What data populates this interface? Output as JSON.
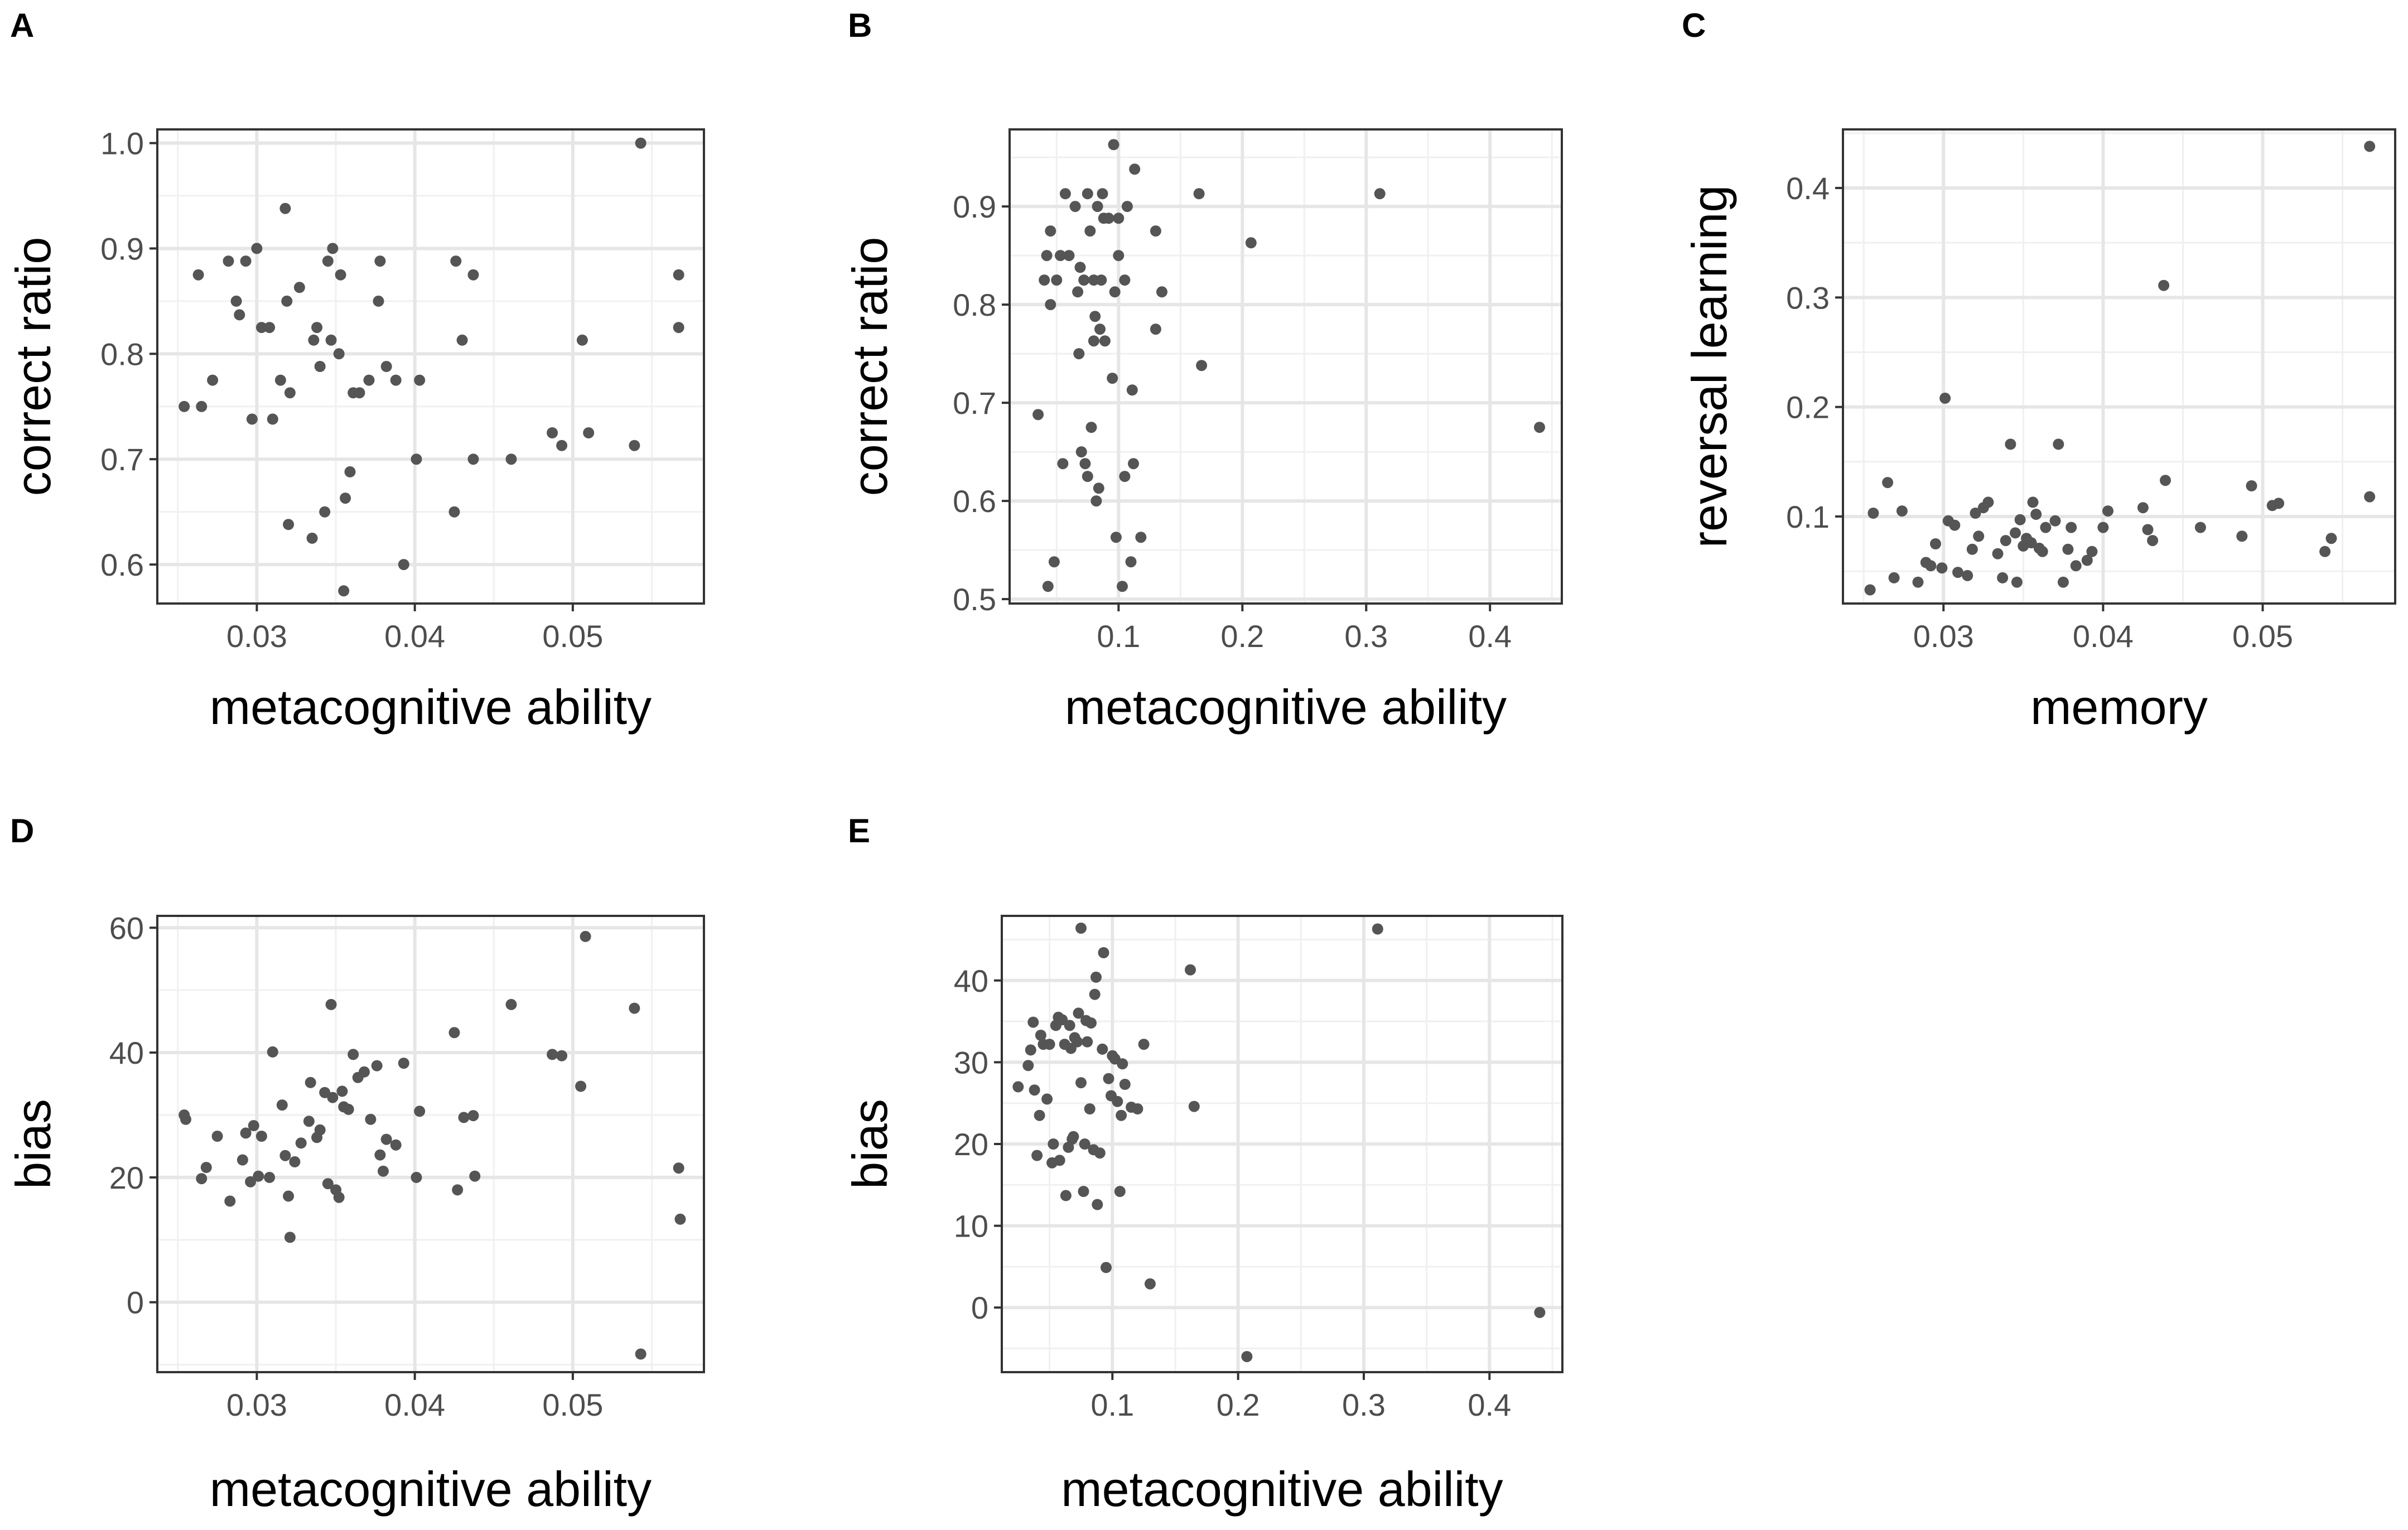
{
  "chart_data": [
    {
      "panel": "A",
      "type": "scatter",
      "xlabel": "metacognitive ability",
      "ylabel": "correct ratio",
      "xlim": [
        0.0237,
        0.0583
      ],
      "ylim": [
        0.563,
        1.013
      ],
      "xticks": [
        0.03,
        0.04,
        0.05
      ],
      "xtick_labels": [
        "0.03",
        "0.04",
        "0.05"
      ],
      "yticks": [
        0.6,
        0.7,
        0.8,
        0.9,
        1.0
      ],
      "ytick_labels": [
        "0.6",
        "0.7",
        "0.8",
        "0.9",
        "1.0"
      ],
      "points": [
        [
          0.0254,
          0.75
        ],
        [
          0.0263,
          0.875
        ],
        [
          0.0265,
          0.75
        ],
        [
          0.0272,
          0.775
        ],
        [
          0.0282,
          0.888
        ],
        [
          0.0287,
          0.85
        ],
        [
          0.0289,
          0.837
        ],
        [
          0.0293,
          0.888
        ],
        [
          0.0297,
          0.738
        ],
        [
          0.03,
          0.9
        ],
        [
          0.0303,
          0.825
        ],
        [
          0.0308,
          0.825
        ],
        [
          0.031,
          0.738
        ],
        [
          0.0315,
          0.775
        ],
        [
          0.0318,
          0.938
        ],
        [
          0.0319,
          0.85
        ],
        [
          0.032,
          0.638
        ],
        [
          0.0321,
          0.763
        ],
        [
          0.0327,
          0.863
        ],
        [
          0.0335,
          0.625
        ],
        [
          0.0336,
          0.813
        ],
        [
          0.0338,
          0.825
        ],
        [
          0.034,
          0.788
        ],
        [
          0.0343,
          0.65
        ],
        [
          0.0345,
          0.888
        ],
        [
          0.0347,
          0.813
        ],
        [
          0.0348,
          0.9
        ],
        [
          0.0352,
          0.8
        ],
        [
          0.0353,
          0.875
        ],
        [
          0.0355,
          0.575
        ],
        [
          0.0356,
          0.663
        ],
        [
          0.0359,
          0.688
        ],
        [
          0.0361,
          0.763
        ],
        [
          0.0365,
          0.763
        ],
        [
          0.0371,
          0.775
        ],
        [
          0.0377,
          0.85
        ],
        [
          0.0378,
          0.888
        ],
        [
          0.0382,
          0.788
        ],
        [
          0.0388,
          0.775
        ],
        [
          0.0393,
          0.6
        ],
        [
          0.0401,
          0.7
        ],
        [
          0.0403,
          0.775
        ],
        [
          0.0425,
          0.65
        ],
        [
          0.0426,
          0.888
        ],
        [
          0.043,
          0.813
        ],
        [
          0.0437,
          0.875
        ],
        [
          0.0437,
          0.7
        ],
        [
          0.0461,
          0.7
        ],
        [
          0.0487,
          0.725
        ],
        [
          0.0493,
          0.713
        ],
        [
          0.0506,
          0.813
        ],
        [
          0.051,
          0.725
        ],
        [
          0.0539,
          0.713
        ],
        [
          0.0543,
          1.0
        ],
        [
          0.0567,
          0.875
        ],
        [
          0.0567,
          0.825
        ]
      ]
    },
    {
      "panel": "B",
      "type": "scatter",
      "xlabel": "metacognitive ability",
      "ylabel": "correct ratio",
      "xlim": [
        0.012,
        0.458
      ],
      "ylim": [
        0.4955,
        0.9785
      ],
      "xticks": [
        0.1,
        0.2,
        0.3,
        0.4
      ],
      "xtick_labels": [
        "0.1",
        "0.2",
        "0.3",
        "0.4"
      ],
      "yticks": [
        0.5,
        0.6,
        0.7,
        0.8,
        0.9
      ],
      "ytick_labels": [
        "0.5",
        "0.6",
        "0.7",
        "0.8",
        "0.9"
      ],
      "points": [
        [
          0.035,
          0.688
        ],
        [
          0.04,
          0.825
        ],
        [
          0.042,
          0.85
        ],
        [
          0.043,
          0.513
        ],
        [
          0.045,
          0.8
        ],
        [
          0.045,
          0.875
        ],
        [
          0.048,
          0.538
        ],
        [
          0.05,
          0.825
        ],
        [
          0.053,
          0.85
        ],
        [
          0.055,
          0.638
        ],
        [
          0.057,
          0.913
        ],
        [
          0.06,
          0.85
        ],
        [
          0.065,
          0.9
        ],
        [
          0.067,
          0.813
        ],
        [
          0.068,
          0.75
        ],
        [
          0.069,
          0.838
        ],
        [
          0.07,
          0.65
        ],
        [
          0.072,
          0.825
        ],
        [
          0.073,
          0.638
        ],
        [
          0.075,
          0.913
        ],
        [
          0.075,
          0.625
        ],
        [
          0.077,
          0.875
        ],
        [
          0.078,
          0.675
        ],
        [
          0.08,
          0.825
        ],
        [
          0.08,
          0.763
        ],
        [
          0.081,
          0.788
        ],
        [
          0.082,
          0.6
        ],
        [
          0.083,
          0.9
        ],
        [
          0.084,
          0.613
        ],
        [
          0.085,
          0.775
        ],
        [
          0.086,
          0.825
        ],
        [
          0.087,
          0.913
        ],
        [
          0.088,
          0.888
        ],
        [
          0.089,
          0.763
        ],
        [
          0.092,
          0.888
        ],
        [
          0.095,
          0.725
        ],
        [
          0.096,
          0.963
        ],
        [
          0.097,
          0.813
        ],
        [
          0.098,
          0.563
        ],
        [
          0.1,
          0.85
        ],
        [
          0.1,
          0.888
        ],
        [
          0.103,
          0.513
        ],
        [
          0.105,
          0.625
        ],
        [
          0.105,
          0.825
        ],
        [
          0.107,
          0.9
        ],
        [
          0.11,
          0.538
        ],
        [
          0.111,
          0.713
        ],
        [
          0.112,
          0.638
        ],
        [
          0.113,
          0.938
        ],
        [
          0.118,
          0.563
        ],
        [
          0.13,
          0.875
        ],
        [
          0.13,
          0.775
        ],
        [
          0.135,
          0.813
        ],
        [
          0.165,
          0.913
        ],
        [
          0.167,
          0.738
        ],
        [
          0.207,
          0.863
        ],
        [
          0.311,
          0.913
        ],
        [
          0.44,
          0.675
        ]
      ]
    },
    {
      "panel": "C",
      "type": "scatter",
      "xlabel": "memory",
      "ylabel": "reversal learning",
      "xlim": [
        0.0237,
        0.0583
      ],
      "ylim": [
        0.0205,
        0.4535
      ],
      "xticks": [
        0.03,
        0.04,
        0.05
      ],
      "xtick_labels": [
        "0.03",
        "0.04",
        "0.05"
      ],
      "yticks": [
        0.1,
        0.2,
        0.3,
        0.4
      ],
      "ytick_labels": [
        "0.1",
        "0.2",
        "0.3",
        "0.4"
      ],
      "points": [
        [
          0.0254,
          0.033
        ],
        [
          0.0256,
          0.103
        ],
        [
          0.0265,
          0.131
        ],
        [
          0.0269,
          0.044
        ],
        [
          0.0274,
          0.105
        ],
        [
          0.0284,
          0.04
        ],
        [
          0.0289,
          0.058
        ],
        [
          0.0292,
          0.055
        ],
        [
          0.0295,
          0.075
        ],
        [
          0.0299,
          0.053
        ],
        [
          0.0301,
          0.208
        ],
        [
          0.0303,
          0.096
        ],
        [
          0.0307,
          0.092
        ],
        [
          0.0309,
          0.049
        ],
        [
          0.0315,
          0.046
        ],
        [
          0.0318,
          0.07
        ],
        [
          0.032,
          0.103
        ],
        [
          0.0322,
          0.082
        ],
        [
          0.0325,
          0.108
        ],
        [
          0.0328,
          0.113
        ],
        [
          0.0334,
          0.066
        ],
        [
          0.0337,
          0.044
        ],
        [
          0.0339,
          0.078
        ],
        [
          0.0342,
          0.166
        ],
        [
          0.0345,
          0.085
        ],
        [
          0.0346,
          0.04
        ],
        [
          0.0348,
          0.097
        ],
        [
          0.035,
          0.073
        ],
        [
          0.0352,
          0.08
        ],
        [
          0.0355,
          0.076
        ],
        [
          0.0356,
          0.113
        ],
        [
          0.0358,
          0.102
        ],
        [
          0.036,
          0.071
        ],
        [
          0.0362,
          0.068
        ],
        [
          0.0364,
          0.09
        ],
        [
          0.037,
          0.096
        ],
        [
          0.0372,
          0.166
        ],
        [
          0.0375,
          0.04
        ],
        [
          0.0378,
          0.07
        ],
        [
          0.038,
          0.09
        ],
        [
          0.0383,
          0.055
        ],
        [
          0.039,
          0.06
        ],
        [
          0.0393,
          0.068
        ],
        [
          0.04,
          0.09
        ],
        [
          0.0403,
          0.105
        ],
        [
          0.0425,
          0.108
        ],
        [
          0.0428,
          0.088
        ],
        [
          0.0431,
          0.078
        ],
        [
          0.0438,
          0.311
        ],
        [
          0.0439,
          0.133
        ],
        [
          0.0461,
          0.09
        ],
        [
          0.0487,
          0.082
        ],
        [
          0.0493,
          0.128
        ],
        [
          0.0506,
          0.11
        ],
        [
          0.051,
          0.112
        ],
        [
          0.0539,
          0.068
        ],
        [
          0.0543,
          0.08
        ],
        [
          0.0567,
          0.438
        ],
        [
          0.0567,
          0.118
        ]
      ]
    },
    {
      "panel": "D",
      "type": "scatter",
      "xlabel": "metacognitive ability",
      "ylabel": "bias",
      "xlim": [
        0.0237,
        0.0583
      ],
      "ylim": [
        -11.2,
        61.9
      ],
      "xticks": [
        0.03,
        0.04,
        0.05
      ],
      "xtick_labels": [
        "0.03",
        "0.04",
        "0.05"
      ],
      "yticks": [
        0,
        20,
        40,
        60
      ],
      "ytick_labels": [
        "0",
        "20",
        "40",
        "60"
      ],
      "points": [
        [
          0.0254,
          30.0
        ],
        [
          0.0255,
          29.3
        ],
        [
          0.0265,
          19.8
        ],
        [
          0.0268,
          21.6
        ],
        [
          0.0275,
          26.6
        ],
        [
          0.0283,
          16.2
        ],
        [
          0.0291,
          22.8
        ],
        [
          0.0293,
          27.1
        ],
        [
          0.0296,
          19.3
        ],
        [
          0.0298,
          28.3
        ],
        [
          0.0301,
          20.2
        ],
        [
          0.0303,
          26.6
        ],
        [
          0.0308,
          20.0
        ],
        [
          0.031,
          40.1
        ],
        [
          0.0316,
          31.6
        ],
        [
          0.0318,
          23.5
        ],
        [
          0.032,
          17.0
        ],
        [
          0.0321,
          10.4
        ],
        [
          0.0324,
          22.5
        ],
        [
          0.0328,
          25.5
        ],
        [
          0.0333,
          29.0
        ],
        [
          0.0334,
          35.2
        ],
        [
          0.0338,
          26.4
        ],
        [
          0.034,
          27.6
        ],
        [
          0.0343,
          33.6
        ],
        [
          0.0345,
          19.0
        ],
        [
          0.0347,
          47.7
        ],
        [
          0.0348,
          32.8
        ],
        [
          0.035,
          18.0
        ],
        [
          0.0352,
          16.8
        ],
        [
          0.0354,
          33.8
        ],
        [
          0.0355,
          31.3
        ],
        [
          0.0358,
          30.9
        ],
        [
          0.0361,
          39.7
        ],
        [
          0.0364,
          36.0
        ],
        [
          0.0368,
          36.9
        ],
        [
          0.0372,
          29.3
        ],
        [
          0.0376,
          37.9
        ],
        [
          0.0378,
          23.6
        ],
        [
          0.038,
          21.0
        ],
        [
          0.0382,
          26.1
        ],
        [
          0.0388,
          25.2
        ],
        [
          0.0393,
          38.3
        ],
        [
          0.0401,
          20.0
        ],
        [
          0.0403,
          30.6
        ],
        [
          0.0425,
          43.2
        ],
        [
          0.0427,
          18.0
        ],
        [
          0.0431,
          29.6
        ],
        [
          0.0437,
          29.9
        ],
        [
          0.0438,
          20.2
        ],
        [
          0.0461,
          47.7
        ],
        [
          0.0487,
          39.7
        ],
        [
          0.0493,
          39.5
        ],
        [
          0.0505,
          34.6
        ],
        [
          0.0508,
          58.6
        ],
        [
          0.0539,
          47.1
        ],
        [
          0.0543,
          -8.3
        ],
        [
          0.0567,
          21.5
        ],
        [
          0.0568,
          13.3
        ]
      ]
    },
    {
      "panel": "E",
      "type": "scatter",
      "xlabel": "metacognitive ability",
      "ylabel": "bias",
      "xlim": [
        0.012,
        0.458
      ],
      "ylim": [
        -7.9,
        47.9
      ],
      "xticks": [
        0.1,
        0.2,
        0.3,
        0.4
      ],
      "xtick_labels": [
        "0.1",
        "0.2",
        "0.3",
        "0.4"
      ],
      "yticks": [
        0,
        10,
        20,
        30,
        40
      ],
      "ytick_labels": [
        "0",
        "10",
        "20",
        "30",
        "40"
      ],
      "points": [
        [
          0.025,
          27.0
        ],
        [
          0.033,
          29.6
        ],
        [
          0.035,
          31.5
        ],
        [
          0.037,
          34.9
        ],
        [
          0.038,
          26.6
        ],
        [
          0.04,
          18.6
        ],
        [
          0.042,
          23.5
        ],
        [
          0.043,
          33.3
        ],
        [
          0.045,
          32.2
        ],
        [
          0.048,
          25.5
        ],
        [
          0.05,
          32.2
        ],
        [
          0.052,
          17.7
        ],
        [
          0.053,
          20.0
        ],
        [
          0.055,
          34.5
        ],
        [
          0.057,
          35.5
        ],
        [
          0.058,
          18.0
        ],
        [
          0.06,
          35.2
        ],
        [
          0.062,
          32.2
        ],
        [
          0.063,
          13.7
        ],
        [
          0.065,
          19.6
        ],
        [
          0.066,
          34.5
        ],
        [
          0.067,
          31.7
        ],
        [
          0.068,
          20.6
        ],
        [
          0.069,
          20.9
        ],
        [
          0.07,
          33.0
        ],
        [
          0.072,
          32.5
        ],
        [
          0.073,
          36.0
        ],
        [
          0.075,
          27.5
        ],
        [
          0.075,
          46.4
        ],
        [
          0.077,
          14.2
        ],
        [
          0.078,
          20.0
        ],
        [
          0.079,
          35.1
        ],
        [
          0.08,
          32.5
        ],
        [
          0.082,
          24.3
        ],
        [
          0.083,
          34.8
        ],
        [
          0.085,
          19.3
        ],
        [
          0.086,
          38.3
        ],
        [
          0.087,
          40.4
        ],
        [
          0.088,
          12.6
        ],
        [
          0.09,
          18.9
        ],
        [
          0.092,
          31.6
        ],
        [
          0.093,
          43.4
        ],
        [
          0.095,
          4.9
        ],
        [
          0.097,
          28.0
        ],
        [
          0.099,
          25.9
        ],
        [
          0.1,
          30.8
        ],
        [
          0.102,
          30.4
        ],
        [
          0.104,
          25.2
        ],
        [
          0.106,
          14.2
        ],
        [
          0.107,
          23.5
        ],
        [
          0.108,
          29.8
        ],
        [
          0.11,
          27.3
        ],
        [
          0.115,
          24.5
        ],
        [
          0.12,
          24.3
        ],
        [
          0.125,
          32.2
        ],
        [
          0.13,
          2.9
        ],
        [
          0.162,
          41.3
        ],
        [
          0.165,
          24.6
        ],
        [
          0.207,
          -6.0
        ],
        [
          0.311,
          46.3
        ],
        [
          0.44,
          -0.6
        ]
      ]
    }
  ]
}
